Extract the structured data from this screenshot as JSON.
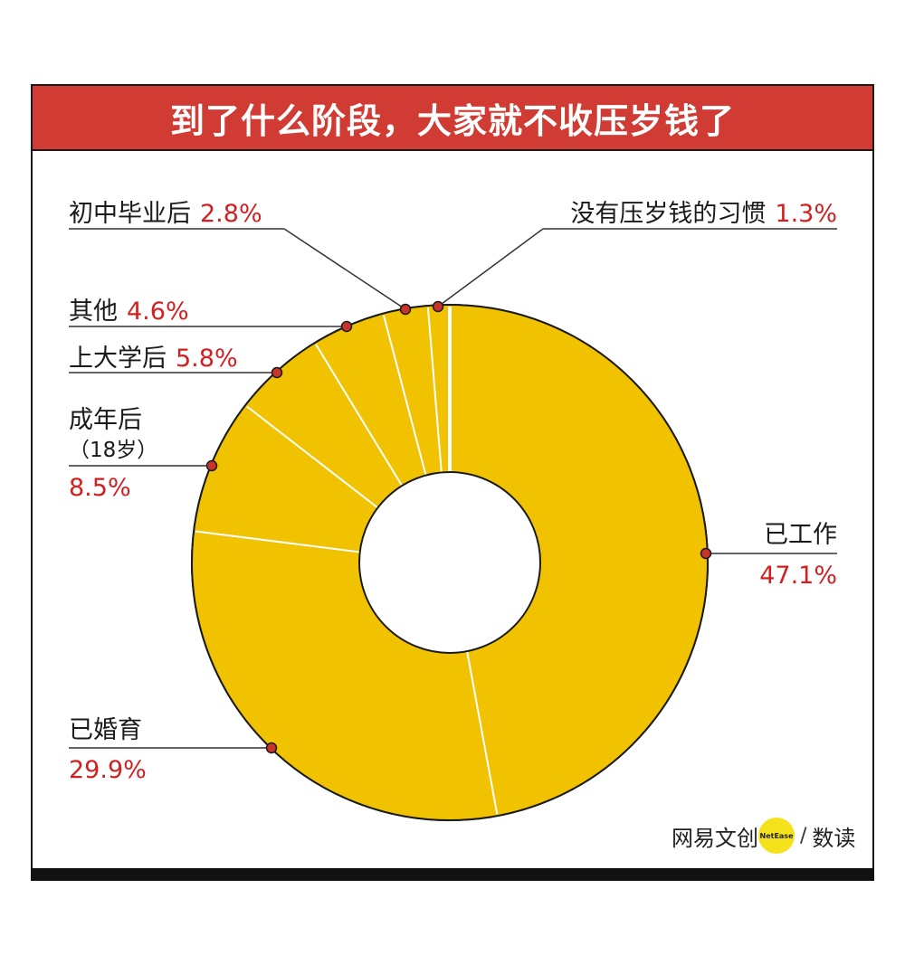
{
  "chart_data": {
    "type": "pie",
    "title": "到了什么阶段，大家就不收压岁钱了",
    "slices": [
      {
        "label": "已工作",
        "value": 47.1,
        "value_label": "47.1%"
      },
      {
        "label": "已婚育",
        "value": 29.9,
        "value_label": "29.9%"
      },
      {
        "label": "成年后",
        "sublabel": "（18岁）",
        "value": 8.5,
        "value_label": "8.5%"
      },
      {
        "label": "上大学后",
        "value": 5.8,
        "value_label": "5.8%"
      },
      {
        "label": "其他",
        "value": 4.6,
        "value_label": "4.6%"
      },
      {
        "label": "初中毕业后",
        "value": 2.8,
        "value_label": "2.8%"
      },
      {
        "label": "没有压岁钱的习惯",
        "value": 1.3,
        "value_label": "1.3%"
      }
    ],
    "colors": {
      "slice": "#f0c200",
      "separator": "#ffffff",
      "outline": "#1a1a1a",
      "marker": "#c8332b",
      "value_text": "#d21f1f"
    }
  },
  "header": {
    "title": "到了什么阶段，大家就不收压岁钱了",
    "bg_color": "#d03b33"
  },
  "logo": {
    "brand": "网易文创",
    "badge": "NetEase",
    "section": "数读"
  }
}
